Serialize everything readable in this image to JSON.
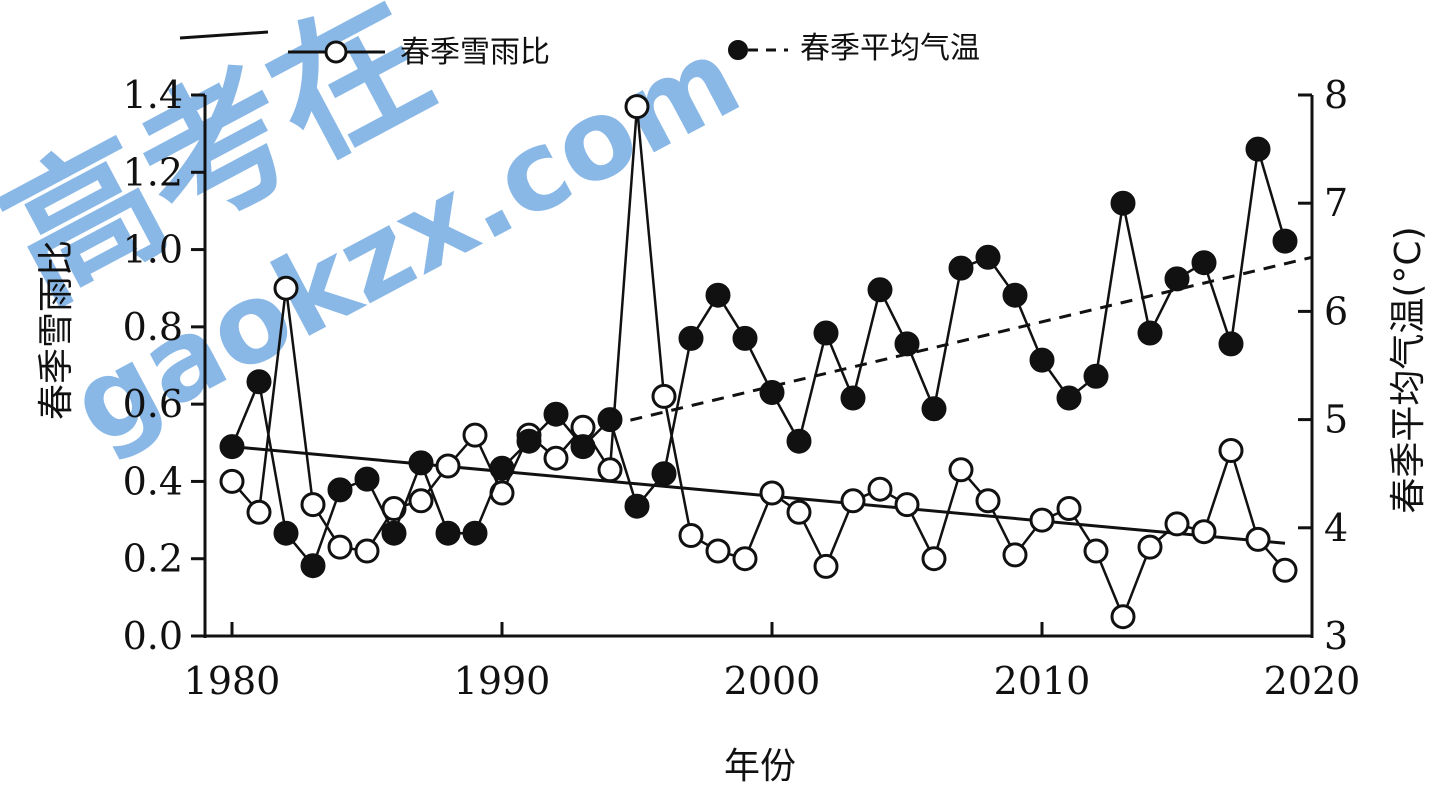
{
  "chart_data": {
    "type": "line",
    "xlabel": "年份",
    "ylabel_left": "春季雪雨比",
    "ylabel_right": "春季平均气温(°C)",
    "xlim": [
      1979,
      2020
    ],
    "ylim_left": [
      0.0,
      1.4
    ],
    "ylim_right": [
      3,
      8
    ],
    "x_ticks": [
      "1980",
      "1990",
      "2000",
      "2010",
      "2020"
    ],
    "y_left_ticks": [
      "0.0",
      "0.2",
      "0.4",
      "0.6",
      "0.8",
      "1.0",
      "1.2",
      "1.4"
    ],
    "y_right_ticks": [
      "3",
      "4",
      "5",
      "6",
      "7",
      "8"
    ],
    "legend_placement": "top",
    "series": [
      {
        "name": "春季雪雨比",
        "axis": "left",
        "marker": "open-circle",
        "line": "solid",
        "color": "#111111",
        "x": [
          1980,
          1981,
          1982,
          1983,
          1984,
          1985,
          1986,
          1987,
          1988,
          1989,
          1990,
          1991,
          1992,
          1993,
          1994,
          1995,
          1996,
          1997,
          1998,
          1999,
          2000,
          2001,
          2002,
          2003,
          2004,
          2005,
          2006,
          2007,
          2008,
          2009,
          2010,
          2011,
          2012,
          2013,
          2014,
          2015,
          2016,
          2017,
          2018,
          2019
        ],
        "y": [
          0.4,
          0.32,
          0.9,
          0.34,
          0.23,
          0.22,
          0.33,
          0.35,
          0.44,
          0.52,
          0.37,
          0.52,
          0.46,
          0.54,
          0.43,
          1.37,
          0.62,
          0.26,
          0.22,
          0.2,
          0.37,
          0.32,
          0.18,
          0.35,
          0.38,
          0.34,
          0.2,
          0.43,
          0.35,
          0.21,
          0.3,
          0.33,
          0.22,
          0.05,
          0.23,
          0.29,
          0.27,
          0.48,
          0.25,
          0.17
        ]
      },
      {
        "name": "春季平均气温",
        "axis": "right",
        "marker": "filled-circle",
        "line": "solid",
        "color": "#111111",
        "x": [
          1980,
          1981,
          1982,
          1983,
          1984,
          1985,
          1986,
          1987,
          1988,
          1989,
          1990,
          1991,
          1992,
          1993,
          1994,
          1995,
          1996,
          1997,
          1998,
          1999,
          2000,
          2001,
          2002,
          2003,
          2004,
          2005,
          2006,
          2007,
          2008,
          2009,
          2010,
          2011,
          2012,
          2013,
          2014,
          2015,
          2016,
          2017,
          2018,
          2019
        ],
        "y": [
          4.75,
          5.35,
          3.95,
          3.65,
          4.35,
          4.45,
          3.95,
          4.6,
          3.95,
          3.95,
          4.55,
          4.8,
          5.05,
          4.75,
          5.0,
          4.2,
          4.5,
          5.75,
          6.15,
          5.75,
          5.25,
          4.8,
          5.8,
          5.2,
          6.2,
          5.7,
          5.1,
          6.4,
          6.5,
          6.15,
          5.55,
          5.2,
          5.4,
          7.0,
          5.8,
          6.3,
          6.45,
          5.7,
          7.5,
          6.65
        ]
      }
    ],
    "trendlines": [
      {
        "of": "春季雪雨比",
        "axis": "left",
        "style": "solid",
        "x": [
          1980,
          2019
        ],
        "y": [
          0.49,
          0.24
        ]
      },
      {
        "of": "春季平均气温",
        "axis": "right",
        "style": "dashed",
        "x": [
          1994,
          2020
        ],
        "y": [
          4.95,
          6.5
        ]
      }
    ],
    "watermark": "高考在线 gaokzx.com"
  }
}
